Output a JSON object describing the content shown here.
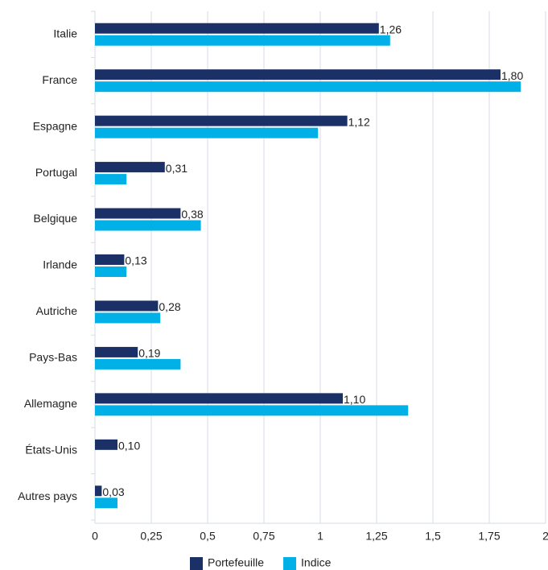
{
  "chart_data": {
    "type": "bar",
    "orientation": "horizontal",
    "categories": [
      "Italie",
      "France",
      "Espagne",
      "Portugal",
      "Belgique",
      "Irlande",
      "Autriche",
      "Pays-Bas",
      "Allemagne",
      "États-Unis",
      "Autres pays"
    ],
    "series": [
      {
        "name": "Portefeuille",
        "color": "#1b3067",
        "values": [
          1.26,
          1.8,
          1.12,
          0.31,
          0.38,
          0.13,
          0.28,
          0.19,
          1.1,
          0.1,
          0.03
        ],
        "value_labels": [
          "1,26",
          "1,80",
          "1,12",
          "0,31",
          "0,38",
          "0,13",
          "0,28",
          "0,19",
          "1,10",
          "0,10",
          "0,03"
        ]
      },
      {
        "name": "Indice",
        "color": "#00b0e6",
        "values": [
          1.31,
          1.89,
          0.99,
          0.14,
          0.47,
          0.14,
          0.29,
          0.38,
          1.39,
          null,
          0.1
        ]
      }
    ],
    "xlim": [
      0,
      2
    ],
    "xticks": [
      0,
      {
        "value": 0.25,
        "label": "0,25"
      },
      {
        "value": 0.5,
        "label": "0,5"
      },
      {
        "value": 0.75,
        "label": "0,75"
      },
      1,
      {
        "value": 1.25,
        "label": "1,25"
      },
      {
        "value": 1.5,
        "label": "1,5"
      },
      {
        "value": 1.75,
        "label": "1,75"
      },
      2
    ],
    "grid": true,
    "legend": "bottom"
  }
}
